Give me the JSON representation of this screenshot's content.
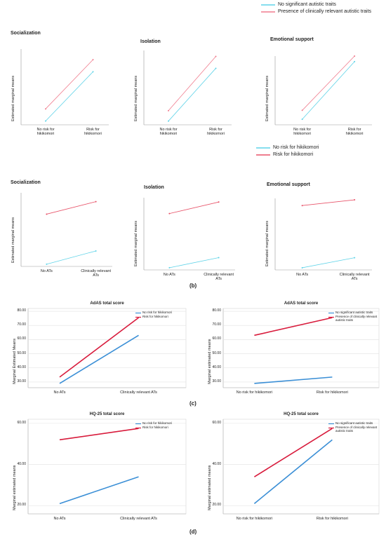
{
  "panel_labels": [
    "(b)",
    "(c)",
    "(d)"
  ],
  "chart_data": [
    {
      "type": "line",
      "title": "Socialization",
      "ylabel": "Estimated marginal means",
      "categories": [
        "No risk for hikikomori",
        "Risk for hikikomori"
      ],
      "ylim": [
        0,
        100
      ],
      "series": [
        {
          "name": "No significant autistic traits",
          "color": "#5fd3e8",
          "values": [
            5,
            70
          ]
        },
        {
          "name": "Presence of clinically relevant autistic traits",
          "color": "#f07c8e",
          "values": [
            21,
            86
          ]
        }
      ]
    },
    {
      "type": "line",
      "title": "Isolation",
      "ylabel": "Estimated marginal means",
      "categories": [
        "No risk for hikikomori",
        "Risk for hikikomori"
      ],
      "ylim": [
        0,
        100
      ],
      "series": [
        {
          "color": "#5fd3e8",
          "values": [
            5,
            76
          ]
        },
        {
          "color": "#f07c8e",
          "values": [
            19,
            92
          ]
        }
      ]
    },
    {
      "type": "line",
      "title": "Emotional support",
      "ylabel": "Estimated marginal means",
      "categories": [
        "No risk for hikikomori",
        "Risk for hikikomori"
      ],
      "ylim": [
        0,
        100
      ],
      "series": [
        {
          "color": "#5fd3e8",
          "values": [
            8,
            92
          ]
        },
        {
          "color": "#f07c8e",
          "values": [
            21,
            100
          ]
        }
      ]
    },
    {
      "type": "line",
      "title": "Socialization",
      "ylabel": "Estimated marginal means",
      "categories": [
        "No ATs",
        "Clinically relevant ATs"
      ],
      "ylim": [
        0,
        100
      ],
      "series": [
        {
          "name": "No risk  for hikikomori",
          "color": "#5fd3e8",
          "values": [
            3,
            21
          ]
        },
        {
          "name": "Risk for hikikomori",
          "color": "#e8546a",
          "values": [
            71,
            88
          ]
        }
      ]
    },
    {
      "type": "line",
      "title": "Isolation",
      "ylabel": "Estimated marginal means",
      "categories": [
        "No ATs",
        "Clinically relevant ATs"
      ],
      "ylim": [
        0,
        100
      ],
      "series": [
        {
          "color": "#5fd3e8",
          "values": [
            3,
            17
          ]
        },
        {
          "color": "#e8546a",
          "values": [
            78,
            94
          ]
        }
      ]
    },
    {
      "type": "line",
      "title": "Emotional support",
      "ylabel": "Estimated marginal means",
      "categories": [
        "No ATs",
        "Clinically relevant ATs"
      ],
      "ylim": [
        0,
        100
      ],
      "series": [
        {
          "color": "#5fd3e8",
          "values": [
            3,
            17
          ]
        },
        {
          "color": "#e8546a",
          "values": [
            90,
            98
          ]
        }
      ]
    },
    {
      "type": "line",
      "title": "AdAS total score",
      "ylabel": "Marginal Estimated Means",
      "categories": [
        "No ATs",
        "Clinically relevant ATs"
      ],
      "ylim": [
        26,
        82
      ],
      "yticks": [
        {
          "value": 30,
          "label": "30.00"
        },
        {
          "value": 40,
          "label": "40.00"
        },
        {
          "value": 50,
          "label": "50.00"
        },
        {
          "value": 60,
          "label": "60.00"
        },
        {
          "value": 70,
          "label": "70.00"
        },
        {
          "value": 80,
          "label": "80.00"
        }
      ],
      "grid": true,
      "series": [
        {
          "name": "No risk for hikikomori",
          "color": "#3b8fd6",
          "values": [
            29,
            63
          ]
        },
        {
          "name": "Risk for hikikomori",
          "color": "#d81b3c",
          "values": [
            33.5,
            75.5
          ]
        }
      ]
    },
    {
      "type": "line",
      "title": "AdAS total score",
      "ylabel": "Marginal estimated means",
      "categories": [
        "No risk for hikikomori",
        "Risk for hikikomori"
      ],
      "ylim": [
        26,
        82
      ],
      "yticks": [
        {
          "value": 30,
          "label": "30.00"
        },
        {
          "value": 40,
          "label": "40.00"
        },
        {
          "value": 50,
          "label": "50.00"
        },
        {
          "value": 60,
          "label": "60.00"
        },
        {
          "value": 70,
          "label": "70.00"
        },
        {
          "value": 80,
          "label": "80.00"
        }
      ],
      "grid": true,
      "series": [
        {
          "name": "No significant autistic traits",
          "color": "#3b8fd6",
          "values": [
            29,
            33.5
          ]
        },
        {
          "name": "Presence of clinically relevant autistic traits",
          "color": "#d81b3c",
          "values": [
            63,
            75.5
          ]
        }
      ]
    },
    {
      "type": "line",
      "title": "HQ-25 total score",
      "ylabel": "Marginal estimated means",
      "categories": [
        "No ATs",
        "Clinically relevant ATs"
      ],
      "ylim": [
        16,
        62
      ],
      "yticks": [
        {
          "value": 20,
          "label": "20.00"
        },
        {
          "value": 40,
          "label": "40.00"
        },
        {
          "value": 60,
          "label": "60.00"
        }
      ],
      "grid": true,
      "series": [
        {
          "name": "No risk for hikikomori",
          "color": "#3b8fd6",
          "values": [
            21,
            34
          ]
        },
        {
          "name": "Risk for hikikomori",
          "color": "#d81b3c",
          "values": [
            52,
            57.5
          ]
        }
      ]
    },
    {
      "type": "line",
      "title": "HQ-25 total score",
      "ylabel": "Marginal estimated means",
      "categories": [
        "No risk for hikikomori",
        "Risk for hikikomori"
      ],
      "ylim": [
        16,
        62
      ],
      "yticks": [
        {
          "value": 20,
          "label": "20.00"
        },
        {
          "value": 40,
          "label": "40.00"
        },
        {
          "value": 60,
          "label": "60.00"
        }
      ],
      "grid": true,
      "series": [
        {
          "name": "No significant autistic traits",
          "color": "#3b8fd6",
          "values": [
            21,
            52
          ]
        },
        {
          "name": "Presence of clinically relevant autistic traits",
          "color": "#d81b3c",
          "values": [
            34,
            57.5
          ]
        }
      ]
    }
  ]
}
